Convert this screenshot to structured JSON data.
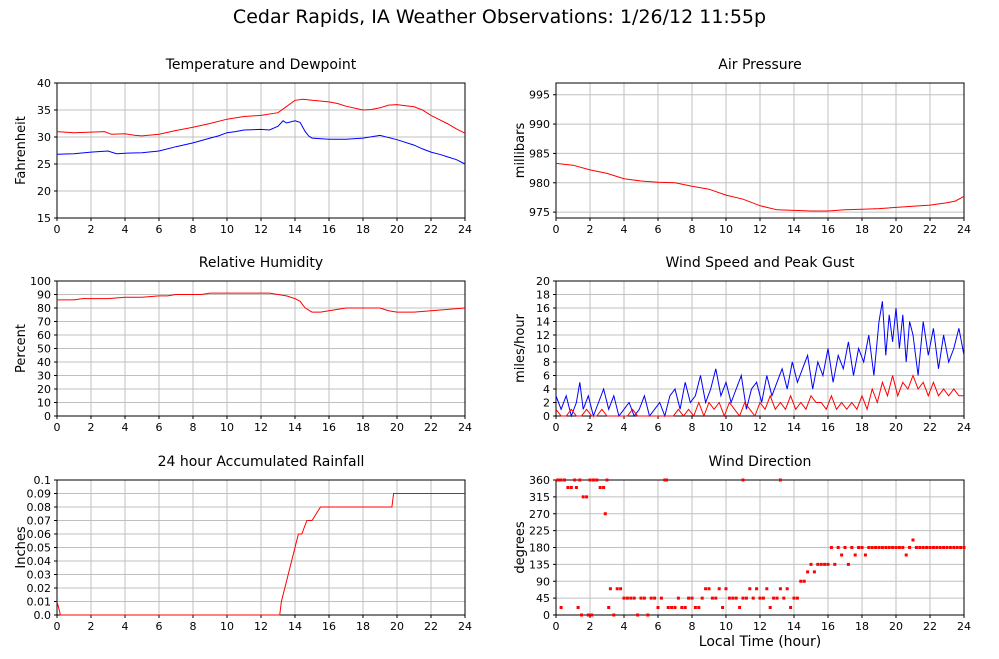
{
  "title": "Cedar Rapids, IA Weather Observations: 1/26/12 11:55p",
  "xlabel": "Local Time (hour)",
  "colors": {
    "red": "#ff0000",
    "blue": "#0000ff",
    "grid": "#c0c0c0"
  },
  "chart_data": [
    {
      "type": "line",
      "title": "Temperature and Dewpoint",
      "ylabel": "Fahrenheit",
      "xlim": [
        0,
        24
      ],
      "ylim": [
        15,
        40
      ],
      "xticks": [
        "0",
        "2",
        "4",
        "6",
        "8",
        "10",
        "12",
        "14",
        "16",
        "18",
        "20",
        "22",
        "24"
      ],
      "yticks": [
        "15",
        "20",
        "25",
        "30",
        "35",
        "40"
      ],
      "grid": true,
      "series": [
        {
          "color": "red",
          "x": [
            0,
            1,
            2,
            2.8,
            3.2,
            4,
            4.6,
            5,
            6,
            7,
            8,
            9,
            10,
            11,
            12,
            13,
            14,
            14.5,
            15,
            16,
            16.5,
            17,
            18,
            18.5,
            19,
            19.5,
            20,
            20.5,
            21,
            21.5,
            22,
            22.5,
            23,
            23.5,
            24
          ],
          "y": [
            31,
            30.8,
            30.9,
            31,
            30.5,
            30.6,
            30.3,
            30.2,
            30.5,
            31.2,
            31.8,
            32.5,
            33.3,
            33.8,
            34,
            34.5,
            36.8,
            37,
            36.8,
            36.5,
            36.2,
            35.7,
            35,
            35.1,
            35.4,
            35.9,
            36,
            35.8,
            35.6,
            35,
            34,
            33.2,
            32.4,
            31.5,
            30.7
          ]
        },
        {
          "color": "blue",
          "x": [
            0,
            1,
            2,
            3,
            3.5,
            4,
            5,
            6,
            7,
            8,
            9,
            9.5,
            10,
            10.5,
            11,
            12,
            12.5,
            13,
            13.3,
            13.5,
            14,
            14.3,
            14.6,
            14.8,
            15,
            16,
            17,
            18,
            19,
            20,
            21,
            21.5,
            22,
            22.5,
            23,
            23.5,
            24
          ],
          "y": [
            26.8,
            26.9,
            27.2,
            27.4,
            26.9,
            27,
            27.1,
            27.4,
            28.2,
            28.9,
            29.8,
            30.2,
            30.8,
            31,
            31.3,
            31.4,
            31.3,
            32,
            33,
            32.6,
            33,
            32.7,
            31,
            30.2,
            29.8,
            29.6,
            29.6,
            29.8,
            30.3,
            29.5,
            28.5,
            27.8,
            27.2,
            26.8,
            26.3,
            25.8,
            25
          ]
        }
      ]
    },
    {
      "type": "line",
      "title": "Air Pressure",
      "ylabel": "millibars",
      "xlim": [
        0,
        24
      ],
      "ylim": [
        974,
        997
      ],
      "xticks": [
        "0",
        "2",
        "4",
        "6",
        "8",
        "10",
        "12",
        "14",
        "16",
        "18",
        "20",
        "22",
        "24"
      ],
      "yticks": [
        "975",
        "980",
        "985",
        "990",
        "995"
      ],
      "grid": true,
      "series": [
        {
          "color": "red",
          "x": [
            0,
            1,
            2,
            3,
            4,
            5,
            6,
            7,
            8,
            9,
            10,
            11,
            12,
            13,
            14,
            15,
            16,
            17,
            18,
            19,
            20,
            21,
            22,
            23,
            23.5,
            24
          ],
          "y": [
            983.3,
            983,
            982.2,
            981.6,
            980.7,
            980.3,
            980.1,
            980,
            979.4,
            978.9,
            977.9,
            977.2,
            976.1,
            975.4,
            975.3,
            975.2,
            975.2,
            975.4,
            975.5,
            975.6,
            975.8,
            976,
            976.2,
            976.6,
            976.9,
            977.7
          ]
        }
      ]
    },
    {
      "type": "line",
      "title": "Relative Humidity",
      "ylabel": "Percent",
      "xlim": [
        0,
        24
      ],
      "ylim": [
        0,
        100
      ],
      "xticks": [
        "0",
        "2",
        "4",
        "6",
        "8",
        "10",
        "12",
        "14",
        "16",
        "18",
        "20",
        "22",
        "24"
      ],
      "yticks": [
        "0",
        "10",
        "20",
        "30",
        "40",
        "50",
        "60",
        "70",
        "80",
        "90",
        "100"
      ],
      "grid": true,
      "series": [
        {
          "color": "red",
          "x": [
            0,
            1,
            1.5,
            3,
            4,
            5,
            6,
            6.5,
            7,
            8,
            8.5,
            9,
            10,
            11,
            12,
            12.5,
            13,
            13.5,
            14,
            14.3,
            14.6,
            15,
            15.5,
            16,
            17,
            18,
            19,
            19.5,
            20,
            21,
            22,
            23,
            24
          ],
          "y": [
            86,
            86,
            87,
            87,
            88,
            88,
            89,
            89,
            90,
            90,
            90,
            91,
            91,
            91,
            91,
            91,
            90,
            89,
            87,
            85,
            80,
            77,
            77,
            78,
            80,
            80,
            80,
            78,
            77,
            77,
            78,
            79,
            80
          ]
        }
      ]
    },
    {
      "type": "line",
      "title": "Wind Speed and Peak Gust",
      "ylabel": "miles/hour",
      "xlim": [
        0,
        24
      ],
      "ylim": [
        0,
        20
      ],
      "xticks": [
        "0",
        "2",
        "4",
        "6",
        "8",
        "10",
        "12",
        "14",
        "16",
        "18",
        "20",
        "22",
        "24"
      ],
      "yticks": [
        "0",
        "2",
        "4",
        "6",
        "8",
        "10",
        "12",
        "14",
        "16",
        "18",
        "20"
      ],
      "grid": true,
      "series": [
        {
          "color": "blue",
          "x": [
            0,
            0.3,
            0.6,
            0.9,
            1.2,
            1.4,
            1.6,
            1.9,
            2.2,
            2.5,
            2.8,
            3.1,
            3.4,
            3.7,
            4,
            4.3,
            4.6,
            4.9,
            5.2,
            5.5,
            5.8,
            6.1,
            6.4,
            6.7,
            7,
            7.3,
            7.6,
            7.9,
            8.2,
            8.5,
            8.8,
            9.1,
            9.4,
            9.7,
            10,
            10.3,
            10.6,
            10.9,
            11.2,
            11.5,
            11.8,
            12.1,
            12.4,
            12.7,
            13,
            13.3,
            13.6,
            13.9,
            14.2,
            14.5,
            14.8,
            15.1,
            15.4,
            15.7,
            16,
            16.3,
            16.6,
            16.9,
            17.2,
            17.5,
            17.8,
            18.1,
            18.4,
            18.7,
            19,
            19.2,
            19.4,
            19.6,
            19.8,
            20,
            20.2,
            20.4,
            20.6,
            20.8,
            21,
            21.3,
            21.6,
            21.9,
            22.2,
            22.5,
            22.8,
            23.1,
            23.4,
            23.7,
            24
          ],
          "y": [
            3,
            1,
            3,
            0,
            2,
            5,
            1,
            3,
            0,
            2,
            4,
            1,
            3,
            0,
            1,
            2,
            0,
            1,
            3,
            0,
            1,
            2,
            0,
            3,
            4,
            1,
            5,
            2,
            3,
            6,
            2,
            4,
            7,
            3,
            5,
            2,
            4,
            6,
            1,
            4,
            5,
            2,
            6,
            3,
            5,
            7,
            4,
            8,
            5,
            7,
            9,
            4,
            8,
            6,
            10,
            5,
            9,
            7,
            11,
            6,
            10,
            8,
            12,
            6,
            14,
            17,
            9,
            15,
            11,
            16,
            10,
            15,
            8,
            14,
            12,
            6,
            14,
            9,
            13,
            7,
            12,
            8,
            10,
            13,
            9
          ]
        },
        {
          "color": "red",
          "x": [
            0,
            0.3,
            0.6,
            0.9,
            1.2,
            1.5,
            1.8,
            2.1,
            2.4,
            2.7,
            3,
            3.3,
            3.6,
            3.9,
            4.2,
            4.5,
            4.8,
            5.1,
            5.4,
            5.7,
            6,
            6.3,
            6.6,
            6.9,
            7.2,
            7.5,
            7.8,
            8.1,
            8.4,
            8.7,
            9,
            9.3,
            9.6,
            9.9,
            10.2,
            10.5,
            10.8,
            11.1,
            11.4,
            11.7,
            12,
            12.3,
            12.6,
            12.9,
            13.2,
            13.5,
            13.8,
            14.1,
            14.4,
            14.7,
            15,
            15.3,
            15.6,
            15.9,
            16.2,
            16.5,
            16.8,
            17.1,
            17.4,
            17.7,
            18,
            18.3,
            18.6,
            18.9,
            19.2,
            19.5,
            19.8,
            20.1,
            20.4,
            20.7,
            21,
            21.3,
            21.6,
            21.9,
            22.2,
            22.5,
            22.8,
            23.1,
            23.4,
            23.7,
            24
          ],
          "y": [
            1,
            0,
            0,
            1,
            0,
            0,
            1,
            0,
            0,
            1,
            0,
            0,
            0,
            0,
            0,
            1,
            0,
            0,
            0,
            0,
            0,
            0,
            0,
            0,
            1,
            0,
            1,
            0,
            2,
            0,
            2,
            1,
            2,
            0,
            2,
            1,
            0,
            2,
            1,
            0,
            2,
            1,
            3,
            1,
            2,
            1,
            3,
            1,
            2,
            1,
            3,
            2,
            2,
            1,
            3,
            1,
            2,
            1,
            2,
            1,
            3,
            1,
            4,
            2,
            5,
            3,
            6,
            3,
            5,
            4,
            6,
            4,
            5,
            3,
            5,
            3,
            4,
            3,
            4,
            3,
            3
          ]
        }
      ]
    },
    {
      "type": "line",
      "title": "24 hour Accumulated Rainfall",
      "ylabel": "Inches",
      "xlim": [
        0,
        24
      ],
      "ylim": [
        0,
        0.1
      ],
      "xticks": [
        "0",
        "2",
        "4",
        "6",
        "8",
        "10",
        "12",
        "14",
        "16",
        "18",
        "20",
        "22",
        "24"
      ],
      "yticks": [
        "0.0",
        "0.01",
        "0.02",
        "0.03",
        "0.04",
        "0.05",
        "0.06",
        "0.07",
        "0.08",
        "0.09",
        "0.1"
      ],
      "grid": true,
      "series": [
        {
          "color": "red",
          "x": [
            0,
            0.15,
            0.2,
            13.1,
            13.2,
            13.4,
            13.6,
            13.8,
            14,
            14.2,
            14.4,
            14.7,
            15,
            15.5,
            16,
            17,
            18,
            19.7,
            19.8,
            20,
            22,
            24
          ],
          "y": [
            0.01,
            0.003,
            0,
            0,
            0.01,
            0.02,
            0.03,
            0.04,
            0.05,
            0.06,
            0.06,
            0.07,
            0.07,
            0.08,
            0.08,
            0.08,
            0.08,
            0.08,
            0.09,
            0.09,
            0.09,
            0.09
          ]
        }
      ]
    },
    {
      "type": "scatter",
      "title": "Wind Direction",
      "ylabel": "degrees",
      "xlim": [
        0,
        24
      ],
      "ylim": [
        0,
        360
      ],
      "xticks": [
        "0",
        "2",
        "4",
        "6",
        "8",
        "10",
        "12",
        "14",
        "16",
        "18",
        "20",
        "22",
        "24"
      ],
      "yticks": [
        "0",
        "45",
        "90",
        "135",
        "180",
        "225",
        "270",
        "315",
        "360"
      ],
      "grid": true,
      "series": [
        {
          "color": "red",
          "x": [
            0.1,
            0.3,
            0.5,
            0.7,
            0.9,
            1.1,
            1.2,
            1.4,
            1.6,
            1.8,
            2,
            2.2,
            2.4,
            2.6,
            2.8,
            3,
            0.3,
            2.9,
            1.3,
            1.9,
            2.1,
            3.2,
            3.4,
            3.6,
            3.8,
            4,
            4.2,
            4.4,
            4.6,
            4.8,
            5,
            5.2,
            5.4,
            5.6,
            5.8,
            6,
            6.2,
            6.5,
            6.6,
            6.8,
            7,
            7.2,
            7.4,
            7.6,
            7.8,
            8,
            8.2,
            8.4,
            8.6,
            8.8,
            9,
            9.2,
            9.4,
            9.6,
            9.8,
            10,
            10.2,
            10.4,
            10.6,
            10.8,
            11,
            11.2,
            11.4,
            11.6,
            11.8,
            12,
            12.2,
            12.4,
            12.6,
            12.8,
            13,
            13.2,
            13.4,
            13.6,
            13.8,
            14,
            14.2,
            14.4,
            14.6,
            14.8,
            15,
            15.2,
            15.4,
            15.6,
            15.8,
            16,
            16.2,
            16.4,
            16.6,
            16.8,
            17,
            17.2,
            17.4,
            17.6,
            17.8,
            18,
            18.2,
            18.4,
            18.6,
            18.8,
            19,
            19.2,
            19.4,
            19.6,
            19.8,
            20,
            20.2,
            20.4,
            20.6,
            20.8,
            21,
            21.2,
            21.4,
            21.6,
            21.8,
            22,
            22.2,
            22.4,
            22.6,
            22.8,
            23,
            23.2,
            23.4,
            23.6,
            23.8,
            24,
            11,
            13.2,
            6.4,
            0.2,
            1.5,
            3.1
          ],
          "y": [
            360,
            360,
            360,
            340,
            340,
            360,
            340,
            360,
            315,
            315,
            360,
            360,
            360,
            340,
            340,
            360,
            20,
            270,
            20,
            0,
            0,
            70,
            0,
            70,
            70,
            45,
            45,
            45,
            45,
            0,
            45,
            45,
            0,
            45,
            45,
            20,
            45,
            360,
            20,
            20,
            20,
            45,
            20,
            20,
            45,
            45,
            20,
            20,
            45,
            70,
            70,
            45,
            45,
            70,
            20,
            70,
            45,
            45,
            45,
            20,
            45,
            45,
            70,
            45,
            70,
            45,
            45,
            70,
            20,
            45,
            45,
            70,
            45,
            70,
            20,
            45,
            45,
            90,
            90,
            115,
            135,
            115,
            135,
            135,
            135,
            135,
            180,
            135,
            180,
            160,
            180,
            135,
            180,
            160,
            180,
            180,
            160,
            180,
            180,
            180,
            180,
            180,
            180,
            180,
            180,
            180,
            180,
            180,
            160,
            180,
            200,
            180,
            180,
            180,
            180,
            180,
            180,
            180,
            180,
            180,
            180,
            180,
            180,
            180,
            180,
            180,
            360,
            360,
            360,
            360,
            0,
            20
          ]
        }
      ]
    }
  ]
}
